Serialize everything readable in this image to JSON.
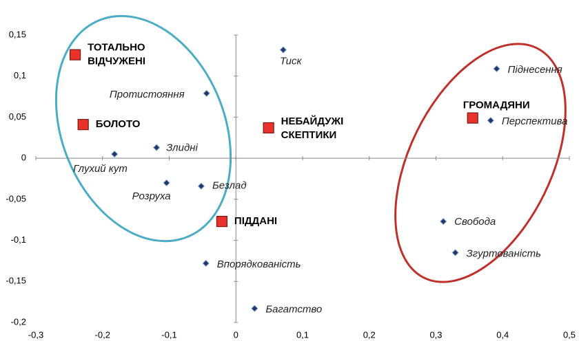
{
  "chart_data": {
    "type": "scatter",
    "xlim": [
      -0.3,
      0.5
    ],
    "xticks": [
      {
        "value": -0.3,
        "label": "-0,3"
      },
      {
        "value": -0.2,
        "label": "-0,2"
      },
      {
        "value": -0.1,
        "label": "-0,1"
      },
      0,
      {
        "value": 0.1,
        "label": "0,1"
      },
      {
        "value": 0.2,
        "label": "0,2"
      },
      {
        "value": 0.3,
        "label": "0,3"
      },
      {
        "value": 0.4,
        "label": "0,4"
      },
      {
        "value": 0.5,
        "label": "0,5"
      }
    ],
    "ylim": [
      -0.2,
      0.15
    ],
    "yticks": [
      {
        "value": -0.2,
        "label": "-0,2"
      },
      {
        "value": -0.15,
        "label": "-0,15"
      },
      {
        "value": -0.1,
        "label": "-0,1"
      },
      {
        "value": -0.05,
        "label": "-0,05"
      },
      0,
      {
        "value": 0.05,
        "label": "0,05"
      },
      {
        "value": 0.1,
        "label": "0,1"
      },
      {
        "value": 0.15,
        "label": "0,15"
      }
    ],
    "series": [
      {
        "color": "#1f3864",
        "marker": "diamond",
        "labels": [
          "Тиск",
          "Піднесення",
          "Протистояння",
          "Перспектива",
          "Злидні",
          "Глухий кут",
          "Розруха",
          "Безлад",
          "Свобода",
          "Згуртованість",
          "Впорядкованість",
          "Багатство"
        ],
        "x": [
          0.071,
          0.391,
          -0.044,
          0.382,
          -0.119,
          -0.182,
          -0.104,
          -0.052,
          0.311,
          0.329,
          -0.045,
          0.028
        ],
        "values": [
          0.132,
          0.109,
          0.079,
          0.046,
          0.013,
          0.005,
          -0.03,
          -0.034,
          -0.077,
          -0.115,
          -0.128,
          -0.183
        ]
      },
      {
        "color": "#e8322b",
        "marker": "square",
        "labels": [
          [
            "ТОТАЛЬНО",
            "ВІДЧУЖЕНІ"
          ],
          [
            "БОЛОТО"
          ],
          [
            "НЕБАЙДУЖІ",
            "СКЕПТИКИ"
          ],
          [
            "ПІДДАНІ"
          ],
          [
            "ГРОМАДЯНИ"
          ]
        ],
        "x": [
          -0.241,
          -0.229,
          0.049,
          -0.021,
          0.355
        ],
        "values": [
          0.126,
          0.041,
          0.037,
          -0.077,
          0.049
        ]
      }
    ]
  }
}
